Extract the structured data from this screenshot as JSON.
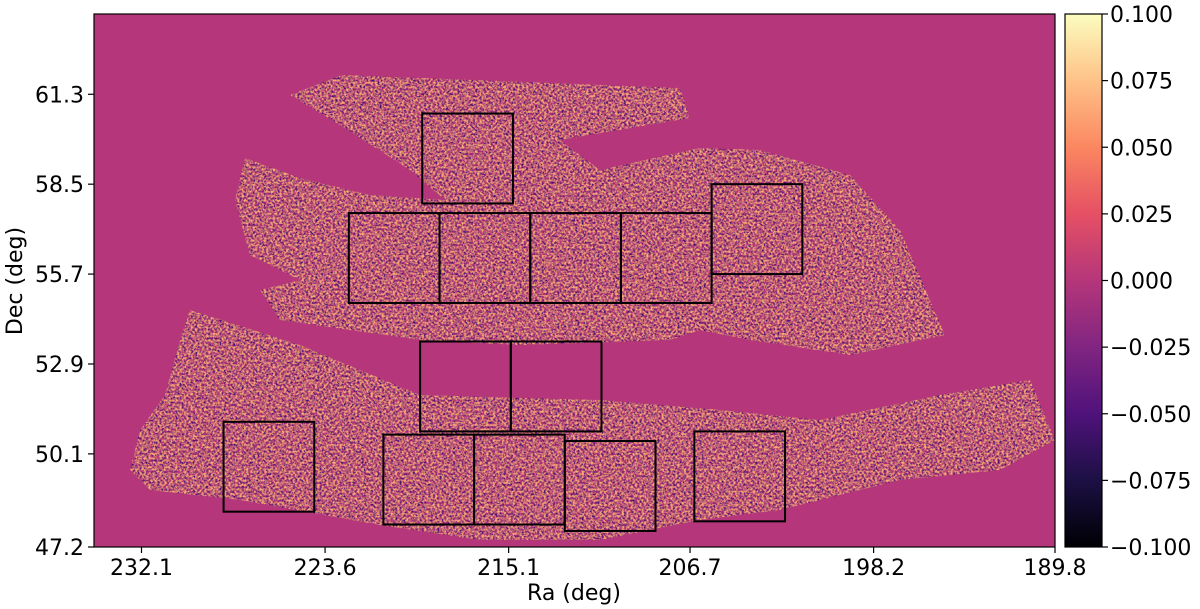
{
  "chart_data": {
    "type": "heatmap",
    "title": "",
    "xlabel": "Ra (deg)",
    "ylabel": "Dec (deg)",
    "xlim": [
      234.3,
      189.8
    ],
    "ylim": [
      47.2,
      63.8
    ],
    "x_ticks": [
      "232.1",
      "223.6",
      "215.1",
      "206.7",
      "198.2",
      "189.8"
    ],
    "x_tick_values": [
      232.1,
      223.6,
      215.1,
      206.7,
      198.2,
      189.8
    ],
    "y_ticks": [
      "47.2",
      "50.1",
      "52.9",
      "55.7",
      "58.5",
      "61.3"
    ],
    "y_tick_values": [
      47.2,
      50.1,
      52.9,
      55.7,
      58.5,
      61.3
    ],
    "colorbar": {
      "colormap": "magma",
      "range": [
        -0.1,
        0.1
      ],
      "ticks": [
        "0.100",
        "0.075",
        "0.050",
        "0.025",
        "0.000",
        "−0.025",
        "−0.050",
        "−0.075",
        "−0.100"
      ],
      "tick_values": [
        0.1,
        0.075,
        0.05,
        0.025,
        0.0,
        -0.025,
        -0.05,
        -0.075,
        -0.1
      ]
    },
    "background_value": 0.0,
    "grid": false,
    "patches": [
      {
        "ra": [
          219.1,
          214.9
        ],
        "dec": [
          60.7,
          57.9
        ]
      },
      {
        "ra": [
          222.5,
          218.3
        ],
        "dec": [
          57.6,
          54.8
        ]
      },
      {
        "ra": [
          218.3,
          214.1
        ],
        "dec": [
          57.6,
          54.8
        ]
      },
      {
        "ra": [
          214.1,
          209.9
        ],
        "dec": [
          57.6,
          54.8
        ]
      },
      {
        "ra": [
          209.9,
          205.7
        ],
        "dec": [
          57.6,
          54.8
        ]
      },
      {
        "ra": [
          205.7,
          201.5
        ],
        "dec": [
          58.5,
          55.7
        ]
      },
      {
        "ra": [
          219.2,
          215.0
        ],
        "dec": [
          53.6,
          50.8
        ]
      },
      {
        "ra": [
          215.0,
          210.8
        ],
        "dec": [
          53.6,
          50.8
        ]
      },
      {
        "ra": [
          228.3,
          224.1
        ],
        "dec": [
          51.1,
          48.3
        ]
      },
      {
        "ra": [
          220.9,
          216.7
        ],
        "dec": [
          50.7,
          47.9
        ]
      },
      {
        "ra": [
          216.7,
          212.5
        ],
        "dec": [
          50.7,
          47.9
        ]
      },
      {
        "ra": [
          212.5,
          208.3
        ],
        "dec": [
          50.5,
          47.7
        ]
      },
      {
        "ra": [
          206.5,
          202.3
        ],
        "dec": [
          50.8,
          48.0
        ]
      }
    ]
  }
}
